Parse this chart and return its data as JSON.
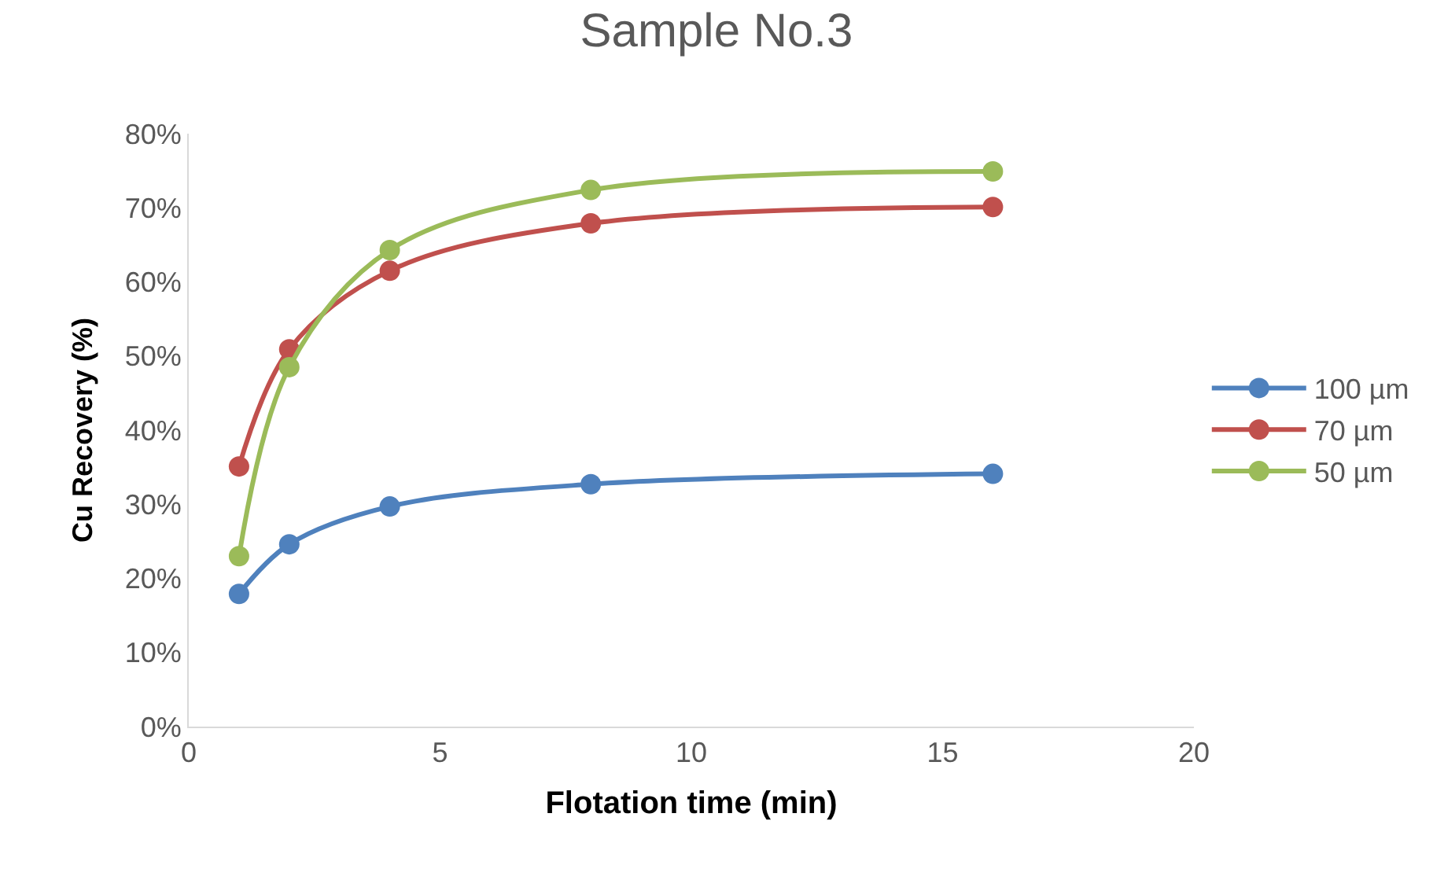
{
  "chart_data": {
    "type": "line",
    "title": "Sample No.3",
    "xlabel": "Flotation time (min)",
    "ylabel": "Cu Recovery (%)",
    "x": [
      1,
      2,
      4,
      8,
      16
    ],
    "series": [
      {
        "name": "100 µm",
        "color": "#4f81bd",
        "values": [
          17.9,
          24.6,
          29.7,
          32.7,
          34.1
        ]
      },
      {
        "name": "70 µm",
        "color": "#c0504d",
        "values": [
          35.1,
          50.9,
          61.5,
          67.9,
          70.1
        ]
      },
      {
        "name": "50 µm",
        "color": "#9bbb59",
        "values": [
          23.0,
          48.5,
          64.3,
          72.4,
          74.9
        ]
      }
    ],
    "xlim": [
      0,
      20
    ],
    "xticks": [
      0,
      5,
      10,
      15,
      20
    ],
    "ylim": [
      0,
      80
    ],
    "yticks": [
      {
        "value": 0,
        "label": "0%"
      },
      {
        "value": 10,
        "label": "10%"
      },
      {
        "value": 20,
        "label": "20%"
      },
      {
        "value": 30,
        "label": "30%"
      },
      {
        "value": 40,
        "label": "40%"
      },
      {
        "value": 50,
        "label": "50%"
      },
      {
        "value": 60,
        "label": "60%"
      },
      {
        "value": 70,
        "label": "70%"
      },
      {
        "value": 80,
        "label": "80%"
      }
    ],
    "legend": "right",
    "marker": "circle",
    "line_style": "solid"
  }
}
